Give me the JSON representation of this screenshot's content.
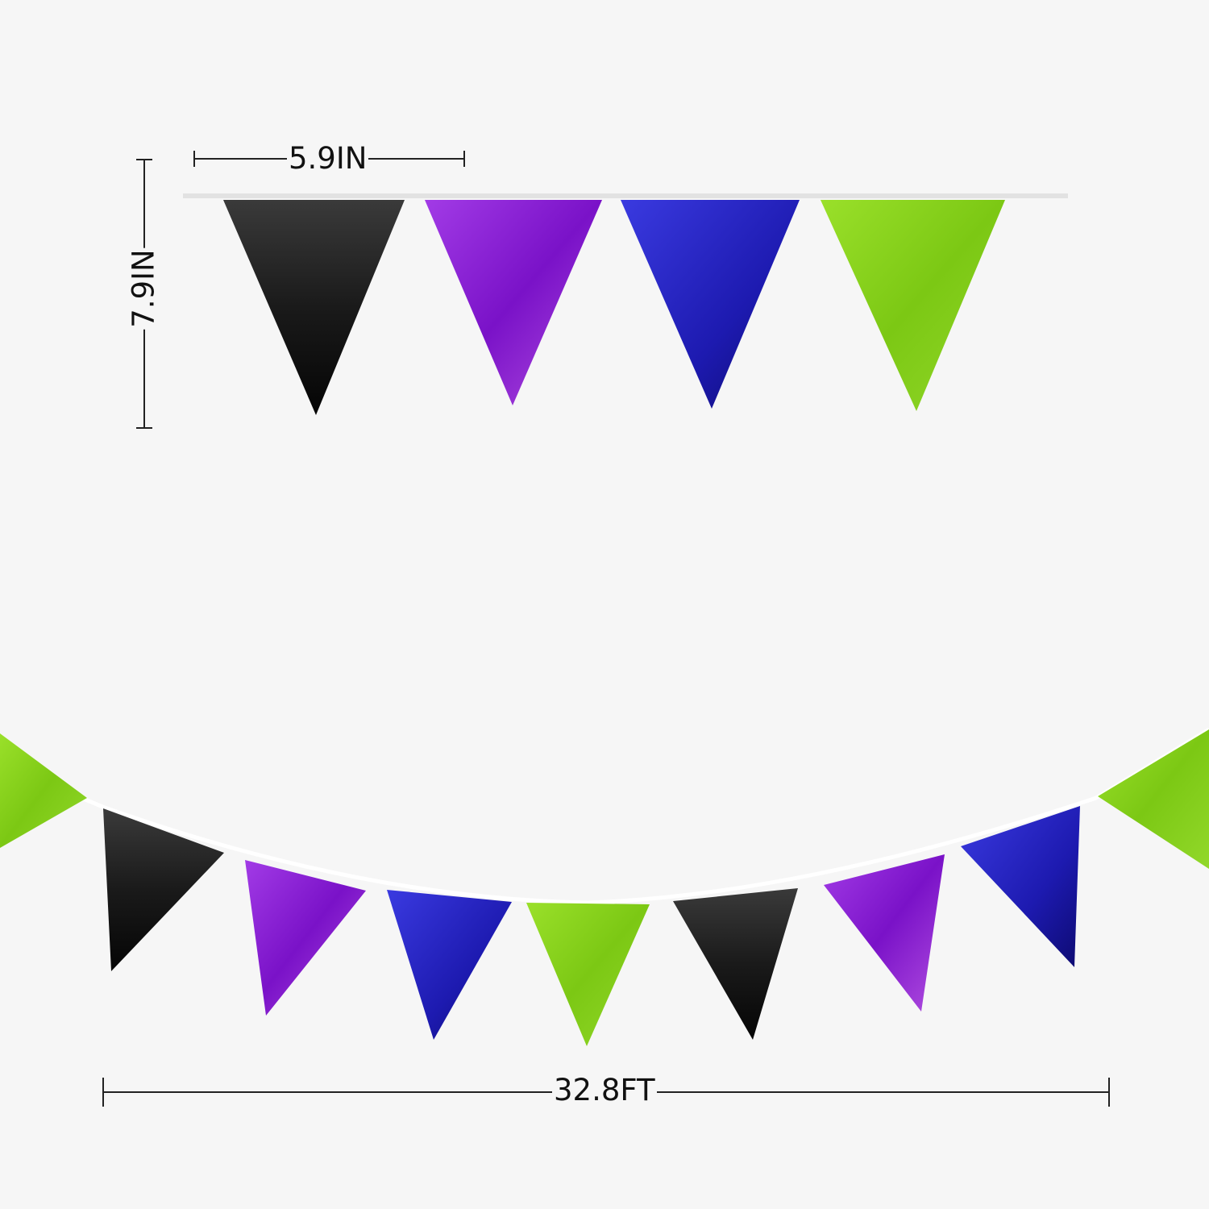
{
  "dimensions": {
    "width_label": "5.9IN",
    "height_label": "7.9IN",
    "length_label": "32.8FT"
  },
  "colors": {
    "black": "#151515",
    "purple": "#8a1fd6",
    "blue": "#2a22c8",
    "green": "#86d41a",
    "background": "#f6f6f6"
  },
  "top_pennants": [
    "black",
    "purple",
    "blue",
    "green"
  ],
  "bottom_pennants": [
    "green",
    "black",
    "purple",
    "blue",
    "green",
    "black",
    "purple",
    "blue",
    "green"
  ]
}
